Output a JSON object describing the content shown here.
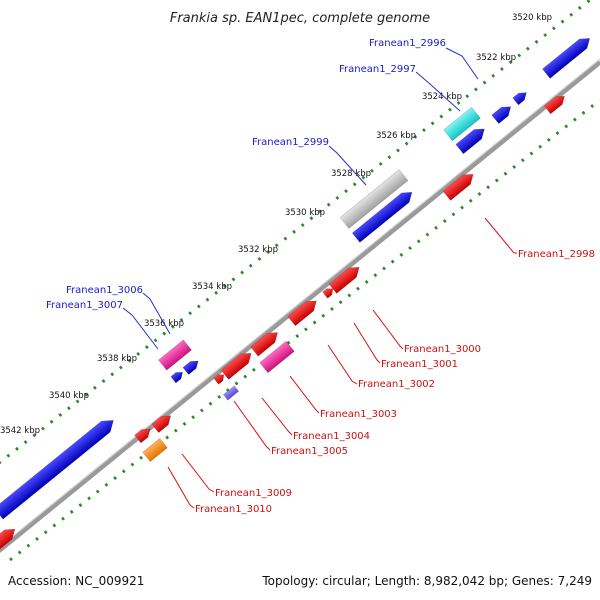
{
  "title": "Frankia sp. EAN1pec, complete genome",
  "footer": {
    "accession": "Accession: NC_009921",
    "summary": "Topology: circular; Length: 8,982,042 bp; Genes: 7,249"
  },
  "ruler_labels": [
    "3520 kbp",
    "3522 kbp",
    "3524 kbp",
    "3526 kbp",
    "3528 kbp",
    "3530 kbp",
    "3532 kbp",
    "3534 kbp",
    "3536 kbp",
    "3538 kbp",
    "3540 kbp",
    "3542 kbp"
  ],
  "gene_labels": {
    "f2996": "Franean1_2996",
    "f2997": "Franean1_2997",
    "f2999": "Franean1_2999",
    "f3006": "Franean1_3006",
    "f3007": "Franean1_3007",
    "f2998": "Franean1_2998",
    "f3000": "Franean1_3000",
    "f3001": "Franean1_3001",
    "f3002": "Franean1_3002",
    "f3003": "Franean1_3003",
    "f3004": "Franean1_3004",
    "f3005": "Franean1_3005",
    "f3009": "Franean1_3009",
    "f3010": "Franean1_3010"
  },
  "colors": {
    "forward_strand": "#1010e0",
    "reverse_strand": "#ee1111",
    "highlight_cyan": "#22dddd",
    "highlight_gray": "#bbbbbb",
    "highlight_magenta": "#ee2299",
    "highlight_orange": "#ff8c1a",
    "backbone": "#999999",
    "ruler": "#2a8a2a"
  }
}
